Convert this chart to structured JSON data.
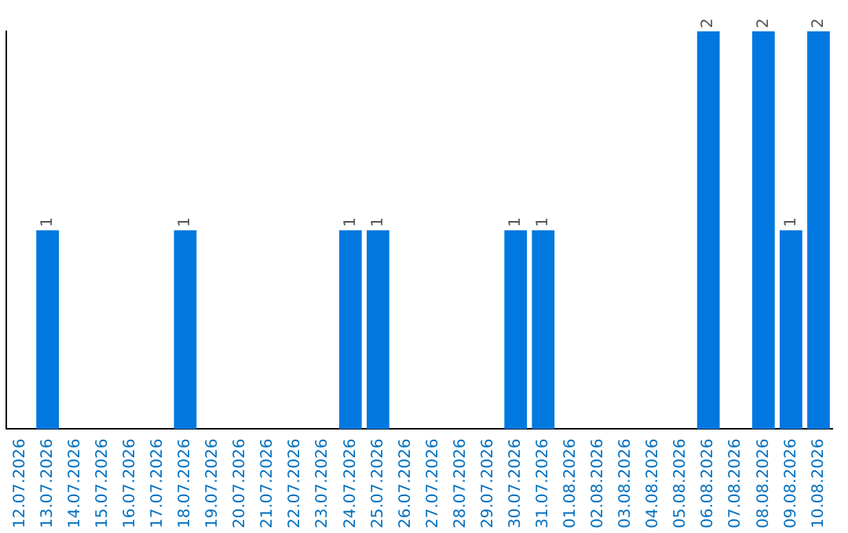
{
  "chart_data": {
    "type": "bar",
    "categories": [
      "12.07.2026",
      "13.07.2026",
      "14.07.2026",
      "15.07.2026",
      "16.07.2026",
      "17.07.2026",
      "18.07.2026",
      "19.07.2026",
      "20.07.2026",
      "21.07.2026",
      "22.07.2026",
      "23.07.2026",
      "24.07.2026",
      "25.07.2026",
      "26.07.2026",
      "27.07.2026",
      "28.07.2026",
      "29.07.2026",
      "30.07.2026",
      "31.07.2026",
      "01.08.2026",
      "02.08.2026",
      "03.08.2026",
      "04.08.2026",
      "05.08.2026",
      "06.08.2026",
      "07.08.2026",
      "08.08.2026",
      "09.08.2026",
      "10.08.2026"
    ],
    "values": [
      0,
      1,
      0,
      0,
      0,
      0,
      1,
      0,
      0,
      0,
      0,
      0,
      1,
      1,
      0,
      0,
      0,
      0,
      1,
      1,
      0,
      0,
      0,
      0,
      0,
      2,
      0,
      2,
      1,
      2
    ],
    "value_labels": [
      null,
      "1",
      null,
      null,
      null,
      null,
      "1",
      null,
      null,
      null,
      null,
      null,
      "1",
      "1",
      null,
      null,
      null,
      null,
      "1",
      "1",
      null,
      null,
      null,
      null,
      null,
      "2",
      null,
      "2",
      "1",
      "2"
    ],
    "color": "#0078e0",
    "grid": false,
    "legend": false,
    "tick_labels": "x"
  }
}
